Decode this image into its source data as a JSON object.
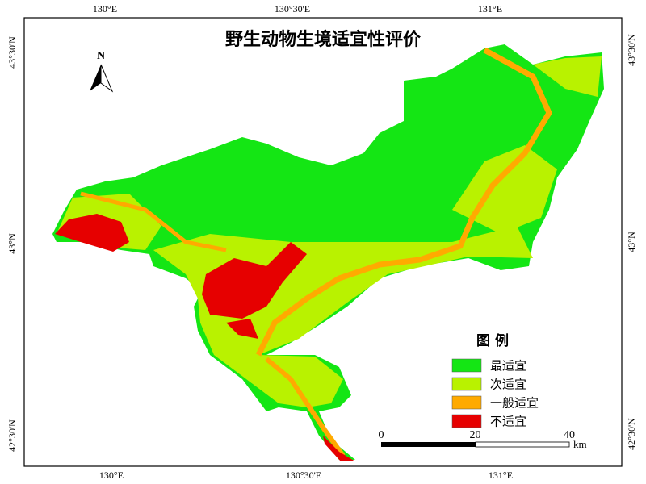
{
  "title": "野生动物生境适宜性评价",
  "north_arrow": "N",
  "top_labels": [
    "130°E",
    "130°30'E",
    "131°E"
  ],
  "bottom_labels": [
    "130°E",
    "130°30'E",
    "131°E"
  ],
  "left_labels": [
    "43°30'N",
    "43°N",
    "42°30'N"
  ],
  "right_labels": [
    "43°30'N",
    "43°N",
    "42°30'N"
  ],
  "legend": {
    "title": "图 例",
    "items": [
      {
        "label": "最适宜",
        "color": "#14e614"
      },
      {
        "label": "次适宜",
        "color": "#b9f200"
      },
      {
        "label": "一般适宜",
        "color": "#ffaa00"
      },
      {
        "label": "不适宜",
        "color": "#e60000"
      }
    ]
  },
  "scale_bar": {
    "ticks": [
      0,
      20,
      40
    ],
    "unit": "km"
  }
}
